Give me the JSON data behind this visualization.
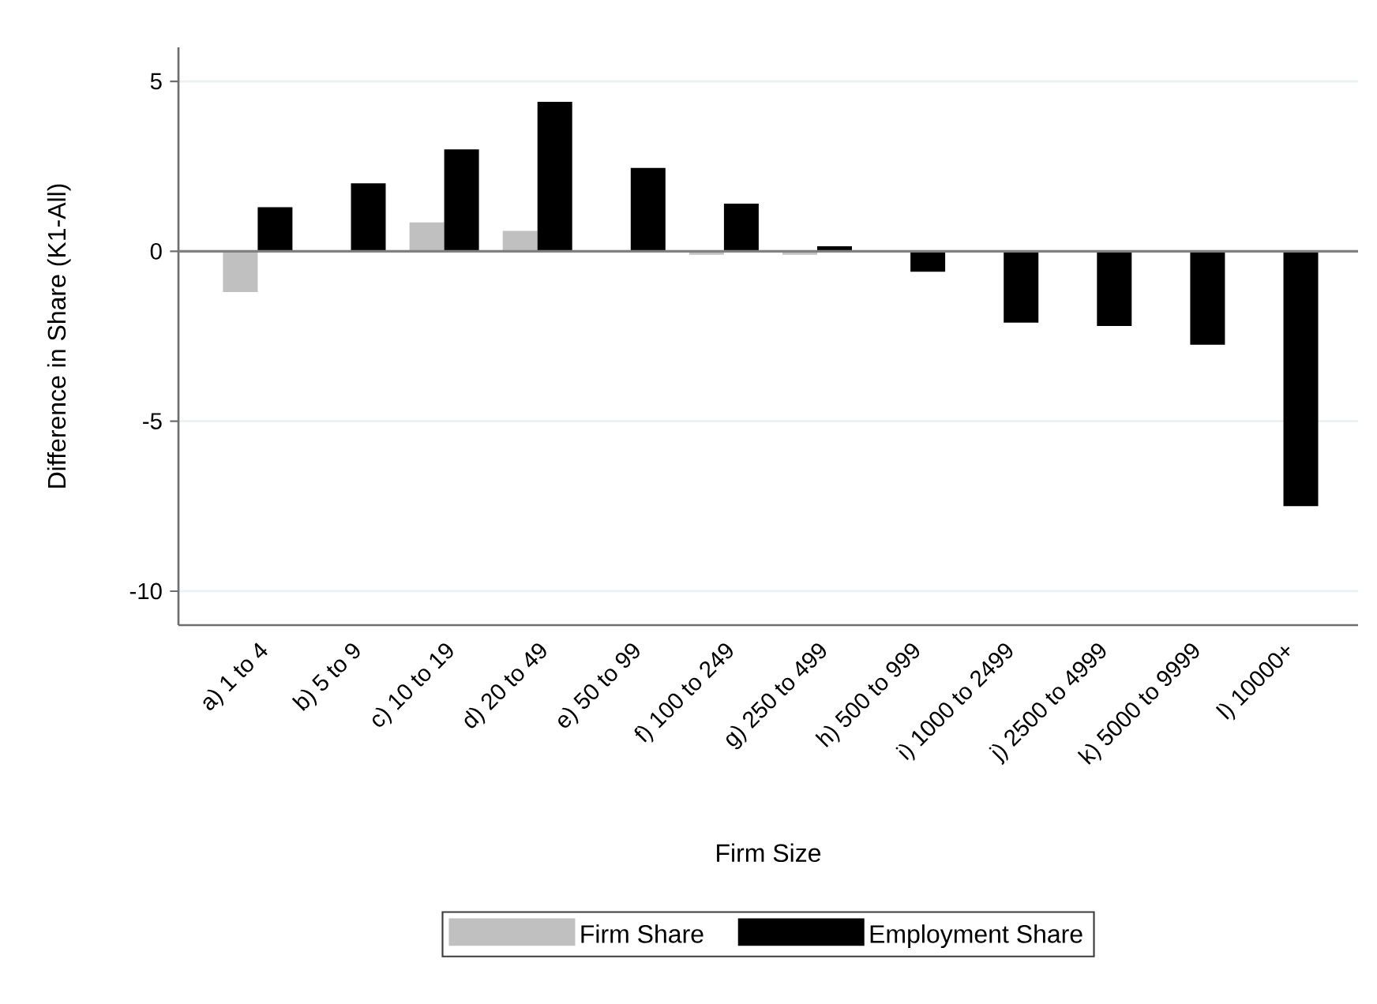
{
  "chart_data": {
    "type": "bar",
    "xlabel": "Firm Size",
    "ylabel": "Difference in Share (K1-All)",
    "categories": [
      "a) 1 to 4",
      "b) 5 to 9",
      "c) 10 to 19",
      "d) 20 to 49",
      "e) 50 to 99",
      "f) 100 to 249",
      "g) 250 to 499",
      "h) 500 to 999",
      "i) 1000 to 2499",
      "j) 2500 to 4999",
      "k) 5000 to 9999",
      "l) 10000+"
    ],
    "series": [
      {
        "name": "Firm Share",
        "color": "#c0c0c0",
        "values": [
          -1.2,
          0,
          0.85,
          0.6,
          0,
          -0.1,
          -0.1,
          0,
          0,
          0,
          0,
          0
        ]
      },
      {
        "name": "Employment Share",
        "color": "#000000",
        "values": [
          1.3,
          2.0,
          3.0,
          4.4,
          2.45,
          1.4,
          0.15,
          -0.6,
          -2.1,
          -2.2,
          -2.75,
          -7.5
        ]
      }
    ],
    "ylim": [
      -11,
      6
    ],
    "yticks": [
      -10,
      -5,
      0,
      5
    ],
    "grid": "y",
    "legend": "bottom",
    "ref_lines": [
      {
        "axis": "y",
        "value": 0,
        "color": "#808080"
      }
    ]
  }
}
